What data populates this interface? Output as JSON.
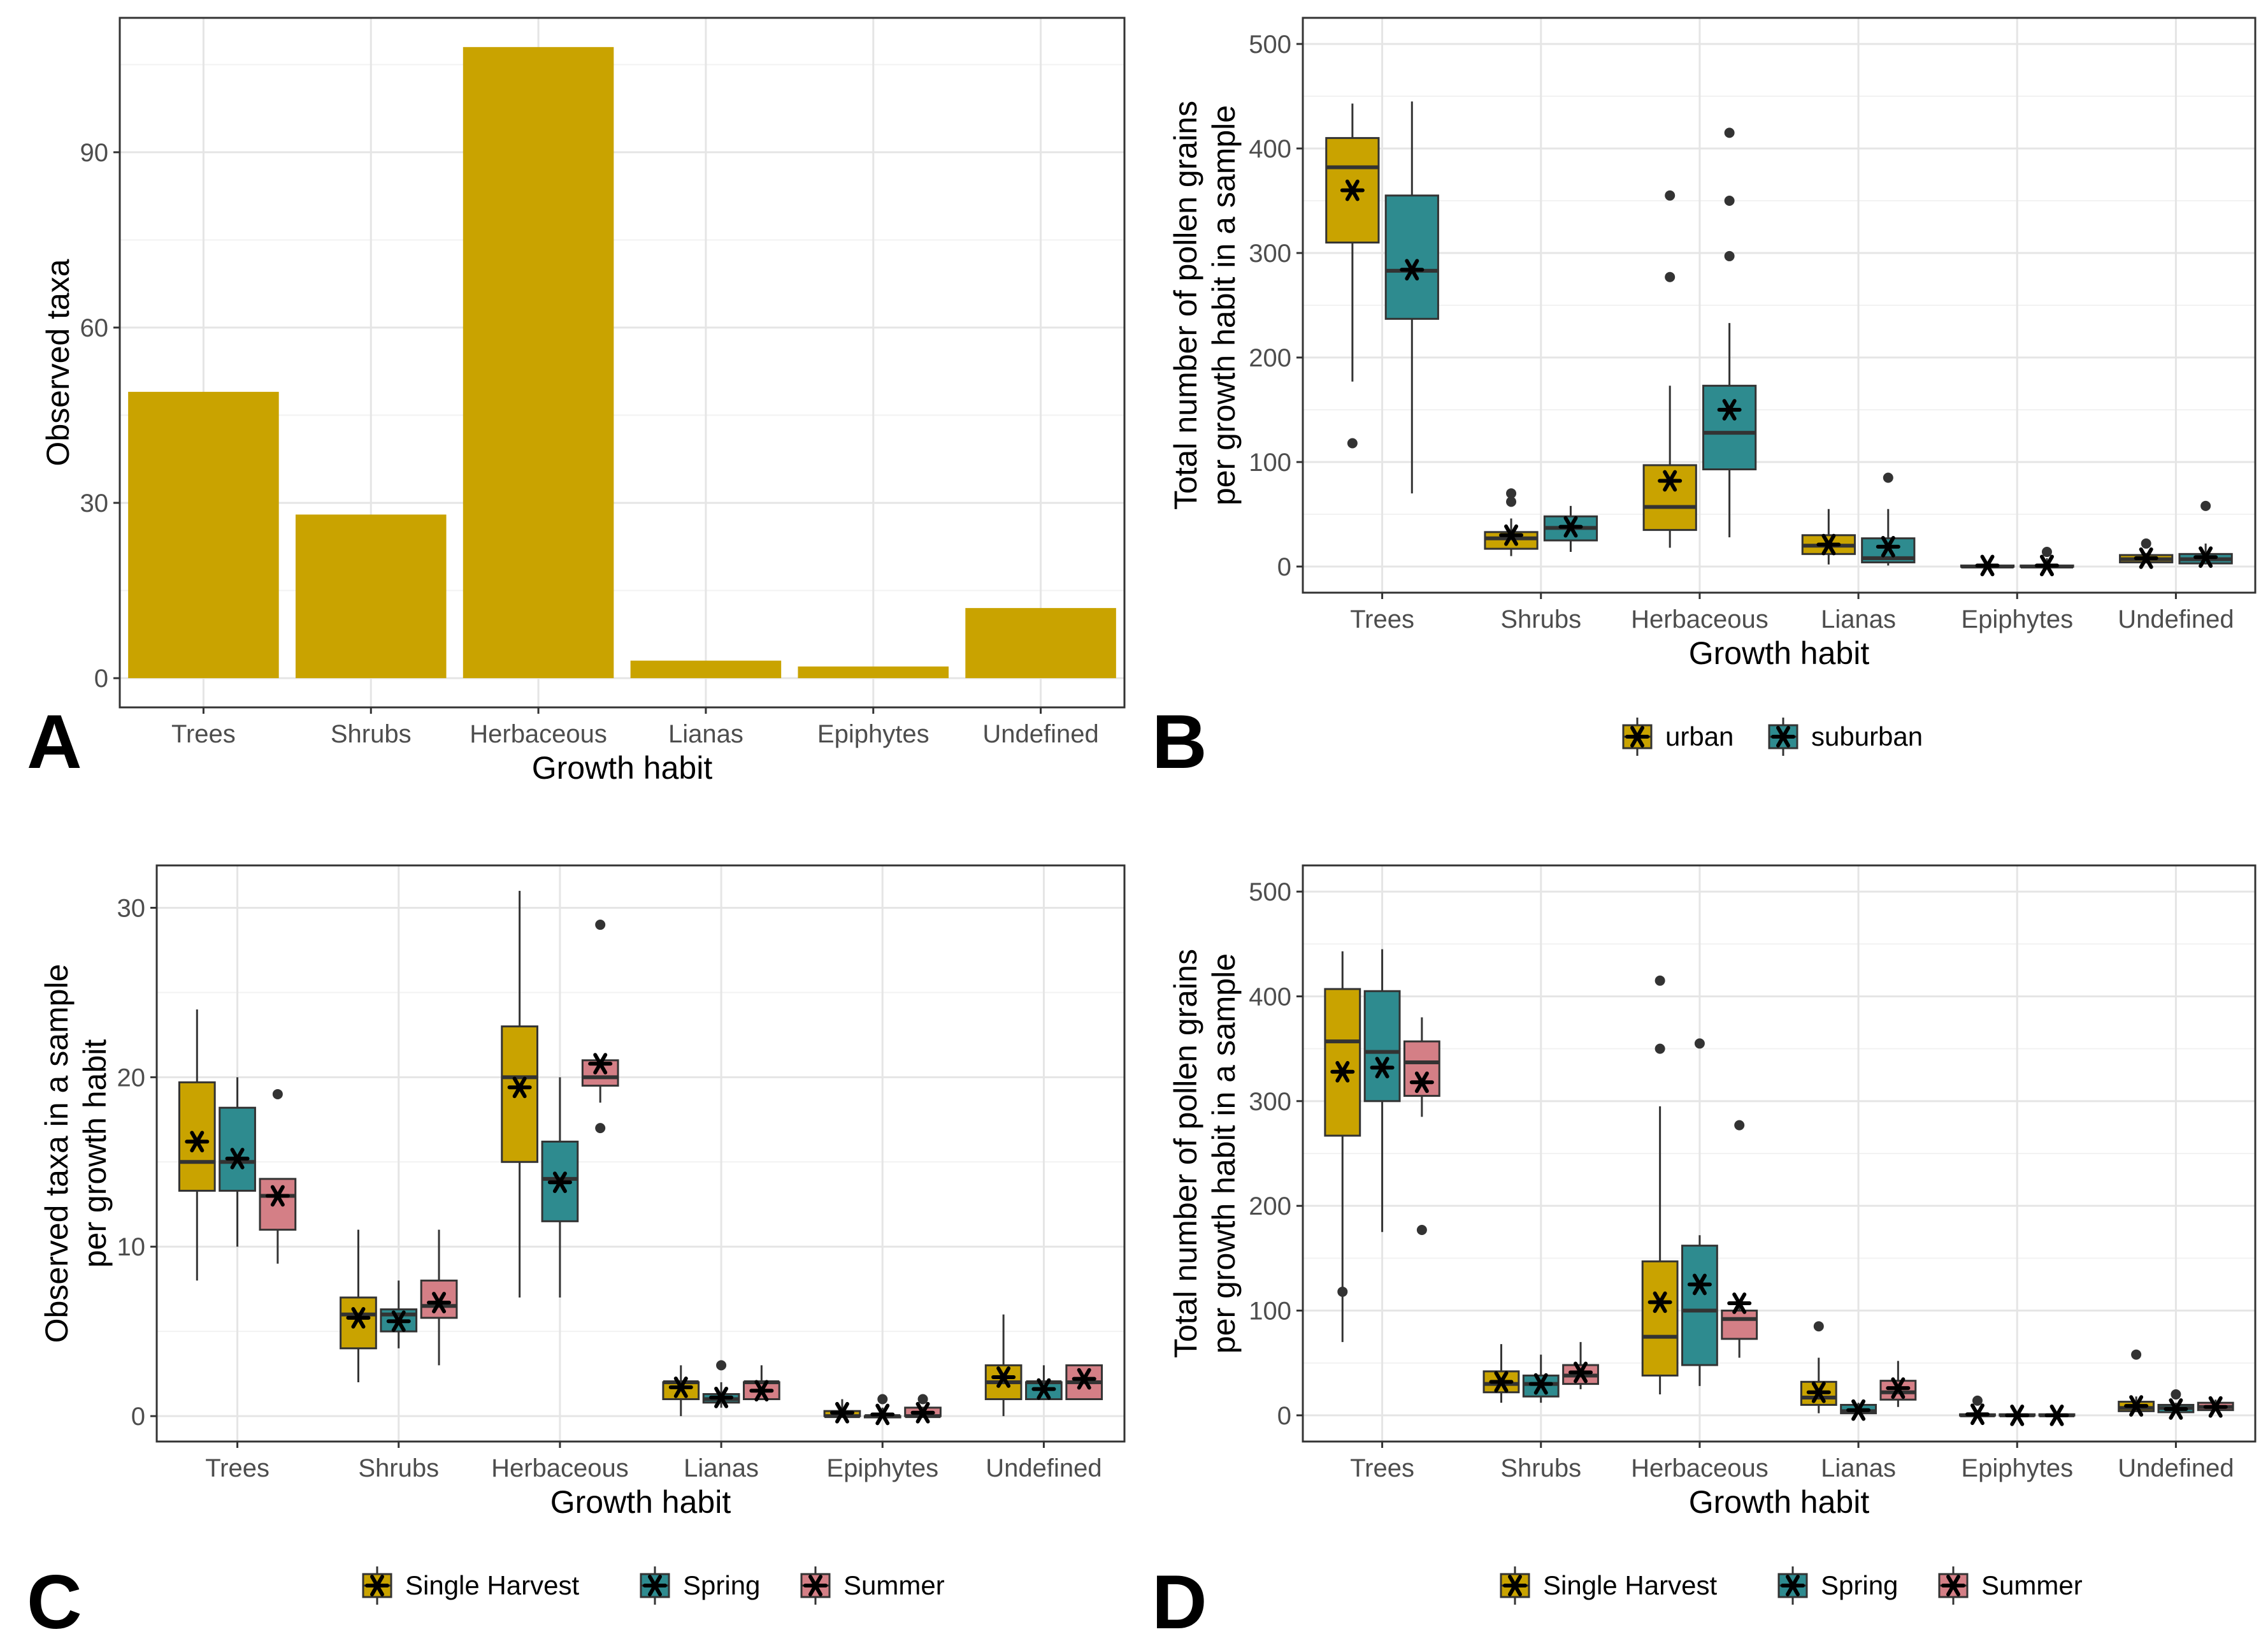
{
  "colors": {
    "Single Harvest": "#c9a300",
    "urban": "#c9a300",
    "Spring": "#2e8b8f",
    "suburban": "#2e8b8f",
    "Summer": "#d47f86",
    "bar": "#c9a300"
  },
  "chart_data": [
    {
      "panel": "A",
      "type": "bar",
      "categories": [
        "Trees",
        "Shrubs",
        "Herbaceous",
        "Lianas",
        "Epiphytes",
        "Undefined"
      ],
      "values": [
        49,
        28,
        108,
        3,
        2,
        12
      ],
      "xlabel": "Growth habit",
      "ylabel": "Observed taxa",
      "ylim": [
        -5,
        113
      ],
      "yticks": [
        0,
        30,
        60,
        90
      ],
      "grid": true
    },
    {
      "panel": "B",
      "type": "box",
      "categories": [
        "Trees",
        "Shrubs",
        "Herbaceous",
        "Lianas",
        "Epiphytes",
        "Undefined"
      ],
      "xlabel": "Growth habit",
      "ylabel": [
        "Total number of pollen grains",
        "per growth habit in a sample"
      ],
      "ylim": [
        -25,
        525
      ],
      "yticks": [
        0,
        100,
        200,
        300,
        400,
        500
      ],
      "legend_position": "bottom",
      "series": [
        {
          "name": "urban",
          "boxes": [
            {
              "low": 177,
              "q1": 310,
              "median": 382,
              "q3": 410,
              "high": 443,
              "mean": 360,
              "outliers": [
                118
              ]
            },
            {
              "low": 10,
              "q1": 17,
              "median": 27,
              "q3": 33,
              "high": 46,
              "mean": 30,
              "outliers": [
                62,
                70
              ]
            },
            {
              "low": 18,
              "q1": 35,
              "median": 57,
              "q3": 97,
              "high": 173,
              "mean": 82,
              "outliers": [
                277,
                355
              ]
            },
            {
              "low": 2,
              "q1": 12,
              "median": 20,
              "q3": 30,
              "high": 55,
              "mean": 21,
              "outliers": []
            },
            {
              "low": 0,
              "q1": 0,
              "median": 0,
              "q3": 1,
              "high": 3,
              "mean": 1,
              "outliers": []
            },
            {
              "low": 3,
              "q1": 4,
              "median": 7,
              "q3": 11,
              "high": 13,
              "mean": 8,
              "outliers": [
                22
              ]
            }
          ]
        },
        {
          "name": "suburban",
          "boxes": [
            {
              "low": 70,
              "q1": 237,
              "median": 283,
              "q3": 355,
              "high": 445,
              "mean": 284,
              "outliers": []
            },
            {
              "low": 14,
              "q1": 25,
              "median": 37,
              "q3": 48,
              "high": 58,
              "mean": 38,
              "outliers": []
            },
            {
              "low": 28,
              "q1": 93,
              "median": 128,
              "q3": 173,
              "high": 233,
              "mean": 150,
              "outliers": [
                297,
                350,
                415
              ]
            },
            {
              "low": 1,
              "q1": 4,
              "median": 8,
              "q3": 27,
              "high": 55,
              "mean": 19,
              "outliers": [
                85
              ]
            },
            {
              "low": 0,
              "q1": 0,
              "median": 0,
              "q3": 1,
              "high": 8,
              "mean": 1,
              "outliers": [
                14
              ]
            },
            {
              "low": 2,
              "q1": 3,
              "median": 7,
              "q3": 12,
              "high": 22,
              "mean": 9,
              "outliers": [
                58
              ]
            }
          ]
        }
      ]
    },
    {
      "panel": "C",
      "type": "box",
      "categories": [
        "Trees",
        "Shrubs",
        "Herbaceous",
        "Lianas",
        "Epiphytes",
        "Undefined"
      ],
      "xlabel": "Growth habit",
      "ylabel": [
        "Observed taxa in a sample",
        "per growth habit"
      ],
      "ylim": [
        -1.5,
        32.5
      ],
      "yticks": [
        0,
        10,
        20,
        30
      ],
      "legend_position": "bottom",
      "series": [
        {
          "name": "Single Harvest",
          "boxes": [
            {
              "low": 8,
              "q1": 13.3,
              "median": 15,
              "q3": 19.7,
              "high": 24,
              "mean": 16.2,
              "outliers": []
            },
            {
              "low": 2,
              "q1": 4,
              "median": 6,
              "q3": 7,
              "high": 11,
              "mean": 5.8,
              "outliers": []
            },
            {
              "low": 7,
              "q1": 15,
              "median": 20,
              "q3": 23,
              "high": 31,
              "mean": 19.4,
              "outliers": []
            },
            {
              "low": 0,
              "q1": 1,
              "median": 2,
              "q3": 2,
              "high": 3,
              "mean": 1.7,
              "outliers": []
            },
            {
              "low": 0,
              "q1": 0,
              "median": 0,
              "q3": 0.3,
              "high": 1,
              "mean": 0.2,
              "outliers": []
            },
            {
              "low": 0,
              "q1": 1,
              "median": 2,
              "q3": 3,
              "high": 6,
              "mean": 2.3,
              "outliers": []
            }
          ]
        },
        {
          "name": "Spring",
          "boxes": [
            {
              "low": 10,
              "q1": 13.3,
              "median": 15,
              "q3": 18.2,
              "high": 20,
              "mean": 15.2,
              "outliers": []
            },
            {
              "low": 4,
              "q1": 5,
              "median": 6,
              "q3": 6.3,
              "high": 8,
              "mean": 5.6,
              "outliers": []
            },
            {
              "low": 7,
              "q1": 11.5,
              "median": 14,
              "q3": 16.2,
              "high": 20,
              "mean": 13.8,
              "outliers": []
            },
            {
              "low": 0.5,
              "q1": 0.8,
              "median": 1,
              "q3": 1.3,
              "high": 2,
              "mean": 1.1,
              "outliers": [
                3
              ]
            },
            {
              "low": 0,
              "q1": 0,
              "median": 0,
              "q3": 0,
              "high": 0.5,
              "mean": 0.1,
              "outliers": [
                1
              ]
            },
            {
              "low": 1,
              "q1": 1,
              "median": 2,
              "q3": 2,
              "high": 3,
              "mean": 1.6,
              "outliers": []
            }
          ]
        },
        {
          "name": "Summer",
          "boxes": [
            {
              "low": 9,
              "q1": 11,
              "median": 13,
              "q3": 14,
              "high": 14,
              "mean": 13,
              "outliers": [
                19
              ]
            },
            {
              "low": 3,
              "q1": 5.8,
              "median": 6.5,
              "q3": 8,
              "high": 11,
              "mean": 6.7,
              "outliers": []
            },
            {
              "low": 18.5,
              "q1": 19.5,
              "median": 20,
              "q3": 21,
              "high": 21,
              "mean": 20.8,
              "outliers": [
                29,
                17
              ]
            },
            {
              "low": 1,
              "q1": 1,
              "median": 2,
              "q3": 2,
              "high": 3,
              "mean": 1.5,
              "outliers": []
            },
            {
              "low": 0,
              "q1": 0,
              "median": 0,
              "q3": 0.5,
              "high": 0.5,
              "mean": 0.2,
              "outliers": [
                1
              ]
            },
            {
              "low": 1,
              "q1": 1,
              "median": 2,
              "q3": 3,
              "high": 3,
              "mean": 2.2,
              "outliers": []
            }
          ]
        }
      ]
    },
    {
      "panel": "D",
      "type": "box",
      "categories": [
        "Trees",
        "Shrubs",
        "Herbaceous",
        "Lianas",
        "Epiphytes",
        "Undefined"
      ],
      "xlabel": "Growth habit",
      "ylabel": [
        "Total number of pollen grains",
        "per growth habit in a sample"
      ],
      "ylim": [
        -25,
        525
      ],
      "yticks": [
        0,
        100,
        200,
        300,
        400,
        500
      ],
      "legend_position": "bottom",
      "series": [
        {
          "name": "Single Harvest",
          "boxes": [
            {
              "low": 70,
              "q1": 267,
              "median": 357,
              "q3": 407,
              "high": 443,
              "mean": 328,
              "outliers": [
                118
              ]
            },
            {
              "low": 12,
              "q1": 22,
              "median": 30,
              "q3": 42,
              "high": 68,
              "mean": 32,
              "outliers": []
            },
            {
              "low": 20,
              "q1": 38,
              "median": 75,
              "q3": 147,
              "high": 295,
              "mean": 108,
              "outliers": [
                350,
                415
              ]
            },
            {
              "low": 2,
              "q1": 10,
              "median": 17,
              "q3": 32,
              "high": 55,
              "mean": 22,
              "outliers": [
                85
              ]
            },
            {
              "low": 0,
              "q1": 0,
              "median": 0,
              "q3": 1,
              "high": 5,
              "mean": 1,
              "outliers": [
                14
              ]
            },
            {
              "low": 3,
              "q1": 4,
              "median": 7,
              "q3": 13,
              "high": 18,
              "mean": 9,
              "outliers": [
                58
              ]
            }
          ]
        },
        {
          "name": "Spring",
          "boxes": [
            {
              "low": 175,
              "q1": 300,
              "median": 347,
              "q3": 405,
              "high": 445,
              "mean": 332,
              "outliers": []
            },
            {
              "low": 12,
              "q1": 18,
              "median": 30,
              "q3": 38,
              "high": 58,
              "mean": 30,
              "outliers": []
            },
            {
              "low": 28,
              "q1": 48,
              "median": 100,
              "q3": 162,
              "high": 172,
              "mean": 125,
              "outliers": [
                355
              ]
            },
            {
              "low": 1,
              "q1": 2,
              "median": 4,
              "q3": 10,
              "high": 12,
              "mean": 5,
              "outliers": []
            },
            {
              "low": 0,
              "q1": 0,
              "median": 0,
              "q3": 1,
              "high": 2,
              "mean": 0,
              "outliers": []
            },
            {
              "low": 2,
              "q1": 3,
              "median": 7,
              "q3": 10,
              "high": 12,
              "mean": 6,
              "outliers": [
                20
              ]
            }
          ]
        },
        {
          "name": "Summer",
          "boxes": [
            {
              "low": 285,
              "q1": 305,
              "median": 337,
              "q3": 357,
              "high": 380,
              "mean": 318,
              "outliers": [
                177
              ]
            },
            {
              "low": 25,
              "q1": 30,
              "median": 38,
              "q3": 48,
              "high": 70,
              "mean": 41,
              "outliers": []
            },
            {
              "low": 55,
              "q1": 73,
              "median": 92,
              "q3": 100,
              "high": 108,
              "mean": 107,
              "outliers": [
                277
              ]
            },
            {
              "low": 8,
              "q1": 15,
              "median": 22,
              "q3": 33,
              "high": 52,
              "mean": 26,
              "outliers": []
            },
            {
              "low": 0,
              "q1": 0,
              "median": 0,
              "q3": 1,
              "high": 2,
              "mean": 0,
              "outliers": []
            },
            {
              "low": 4,
              "q1": 5,
              "median": 8,
              "q3": 12,
              "high": 15,
              "mean": 8,
              "outliers": []
            }
          ]
        }
      ]
    }
  ]
}
